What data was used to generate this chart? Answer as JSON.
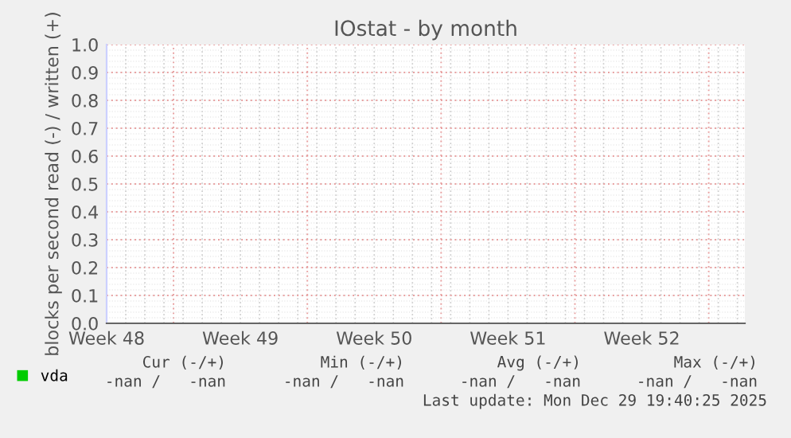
{
  "chart_data": {
    "type": "line",
    "title": "IOstat - by month",
    "ylabel": "blocks per second read (-) / written (+)",
    "categories": [
      "Week 48",
      "Week 49",
      "Week 50",
      "Week 51",
      "Week 52"
    ],
    "series": [
      {
        "name": "vda",
        "color": "#00cc00",
        "values": [
          null,
          null,
          null,
          null,
          null
        ]
      }
    ],
    "ylim": [
      0,
      1
    ],
    "yticks": [
      {
        "value": 0,
        "label": "0.0"
      },
      {
        "value": 0.1,
        "label": "0.1"
      },
      {
        "value": 0.2,
        "label": "0.2"
      },
      {
        "value": 0.3,
        "label": "0.3"
      },
      {
        "value": 0.4,
        "label": "0.4"
      },
      {
        "value": 0.5,
        "label": "0.5"
      },
      {
        "value": 0.6,
        "label": "0.6"
      },
      {
        "value": 0.7,
        "label": "0.7"
      },
      {
        "value": 0.8,
        "label": "0.8"
      },
      {
        "value": 0.9,
        "label": "0.9"
      },
      {
        "value": 1,
        "label": "1.0"
      }
    ],
    "grid": true,
    "legend": "bottom left",
    "annotations": [
      "Cur (-/+)",
      "Min (-/+)",
      "Avg (-/+)",
      "Max (-/+)",
      "-nan /   -nan",
      "-nan /   -nan",
      "-nan /   -nan",
      "-nan /   -nan",
      "Last update: Mon Dec 29 19:40:25 2025"
    ]
  }
}
